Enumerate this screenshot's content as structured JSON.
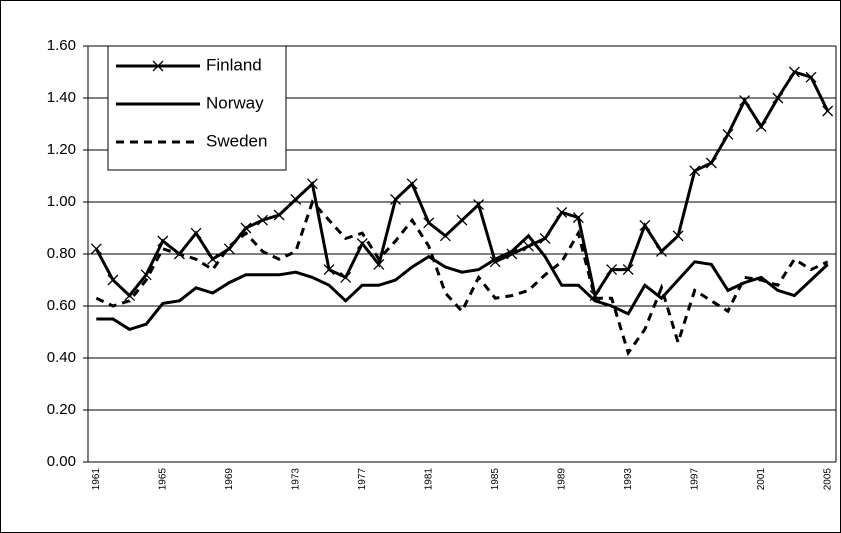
{
  "chart_data": {
    "type": "line",
    "categories": [
      "1961",
      null,
      null,
      null,
      "1965",
      null,
      null,
      null,
      "1969",
      null,
      null,
      null,
      "1973",
      null,
      null,
      null,
      "1977",
      null,
      null,
      null,
      "1981",
      null,
      null,
      null,
      "1985",
      null,
      null,
      null,
      "1989",
      null,
      null,
      null,
      "1993",
      null,
      null,
      null,
      "1997",
      null,
      null,
      null,
      "2001",
      null,
      null,
      null,
      "2005"
    ],
    "series": [
      {
        "name": "Finland",
        "color": "#000000",
        "linestyle": "solid",
        "marker": "x",
        "values": [
          0.82,
          0.7,
          0.64,
          0.72,
          0.85,
          0.8,
          0.88,
          0.78,
          0.82,
          0.9,
          0.93,
          0.95,
          1.01,
          1.07,
          0.74,
          0.71,
          0.84,
          0.76,
          1.01,
          1.07,
          0.92,
          0.87,
          0.93,
          0.99,
          0.77,
          0.8,
          0.83,
          0.86,
          0.96,
          0.94,
          0.64,
          0.74,
          0.74,
          0.91,
          0.81,
          0.87,
          1.12,
          1.15,
          1.26,
          1.39,
          1.29,
          1.4,
          1.5,
          1.48,
          1.35
        ]
      },
      {
        "name": "Norway",
        "color": "#000000",
        "linestyle": "solid",
        "marker": "none",
        "values": [
          0.55,
          0.55,
          0.51,
          0.53,
          0.61,
          0.62,
          0.67,
          0.65,
          0.69,
          0.72,
          0.72,
          0.72,
          0.73,
          0.71,
          0.68,
          0.62,
          0.68,
          0.68,
          0.7,
          0.75,
          0.79,
          0.75,
          0.73,
          0.74,
          0.78,
          0.81,
          0.87,
          0.79,
          0.68,
          0.68,
          0.62,
          0.6,
          0.57,
          0.68,
          0.63,
          0.7,
          0.77,
          0.76,
          0.66,
          0.69,
          0.71,
          0.66,
          0.64,
          0.7,
          0.76
        ]
      },
      {
        "name": "Sweden",
        "color": "#000000",
        "linestyle": "dashed",
        "marker": "none",
        "values": [
          0.63,
          0.6,
          0.62,
          0.7,
          0.82,
          0.8,
          0.78,
          0.74,
          0.83,
          0.88,
          0.81,
          0.78,
          0.81,
          1.0,
          0.93,
          0.86,
          0.88,
          0.78,
          0.85,
          0.93,
          0.83,
          0.65,
          0.58,
          0.71,
          0.63,
          0.64,
          0.66,
          0.72,
          0.77,
          0.88,
          0.63,
          0.63,
          0.42,
          0.51,
          0.67,
          0.46,
          0.66,
          0.62,
          0.58,
          0.71,
          0.7,
          0.68,
          0.78,
          0.74,
          0.77
        ]
      }
    ],
    "ylim": [
      0,
      1.6
    ],
    "yticks": [
      {
        "value": 0,
        "label": "0.00"
      },
      {
        "value": 0.2,
        "label": "0.20"
      },
      {
        "value": 0.4,
        "label": "0.40"
      },
      {
        "value": 0.6,
        "label": "0.60"
      },
      {
        "value": 0.8,
        "label": "0.80"
      },
      {
        "value": 1.0,
        "label": "1.00"
      },
      {
        "value": 1.2,
        "label": "1.20"
      },
      {
        "value": 1.4,
        "label": "1.40"
      },
      {
        "value": 1.6,
        "label": "1.60"
      }
    ],
    "grid": true,
    "legend": "top-left"
  }
}
